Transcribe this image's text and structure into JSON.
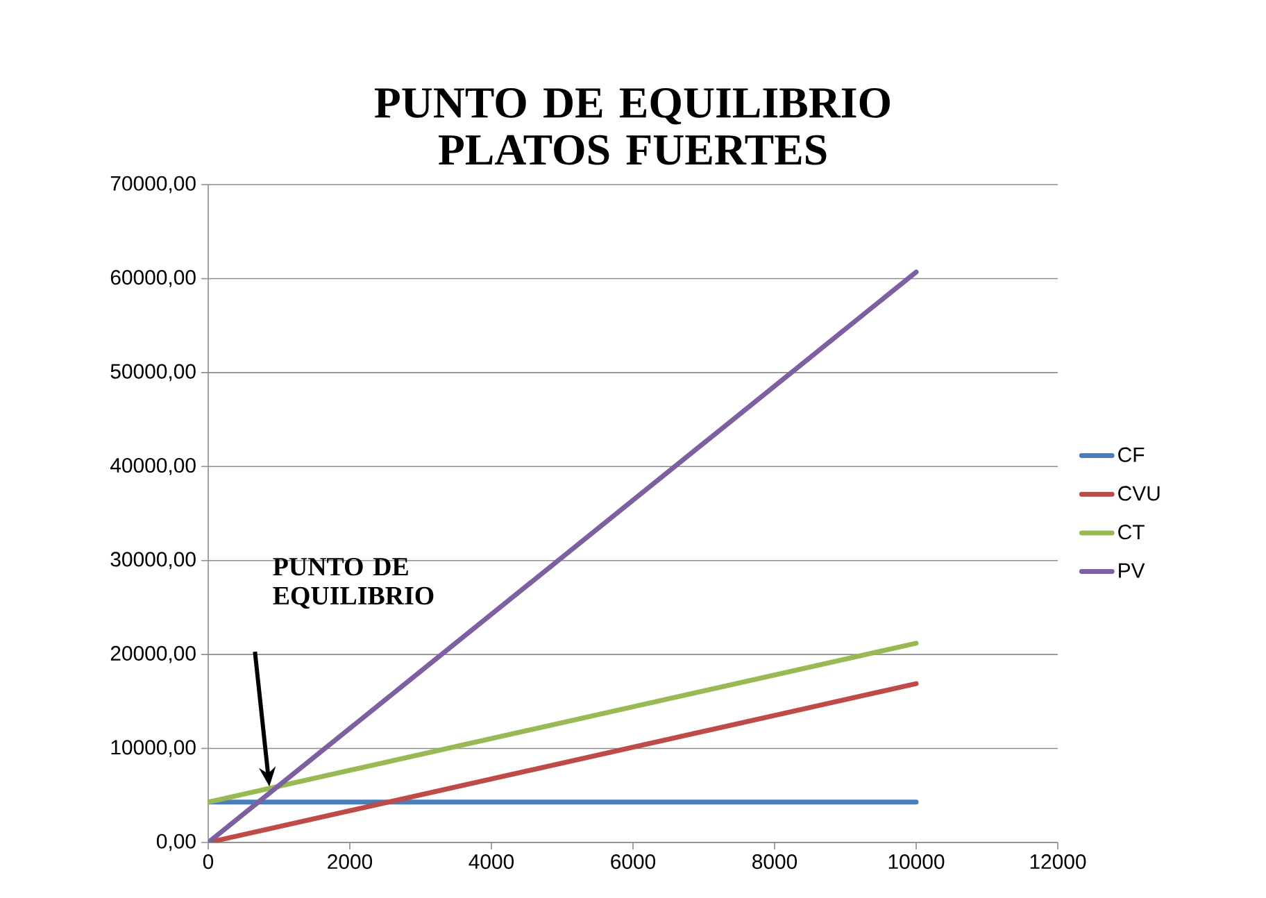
{
  "chart_data": {
    "type": "line",
    "title": "PUNTO DE EQUILIBRIO PLATOS FUERTES",
    "xlim": [
      0,
      12000
    ],
    "xticks": [
      0,
      2000,
      4000,
      6000,
      8000,
      10000,
      12000
    ],
    "ylim": [
      0,
      70000
    ],
    "yticks": [
      {
        "value": 0,
        "label": "0,00"
      },
      {
        "value": 10000,
        "label": "10000,00"
      },
      {
        "value": 20000,
        "label": "20000,00"
      },
      {
        "value": 30000,
        "label": "30000,00"
      },
      {
        "value": 40000,
        "label": "40000,00"
      },
      {
        "value": 50000,
        "label": "50000,00"
      },
      {
        "value": 60000,
        "label": "60000,00"
      },
      {
        "value": 70000,
        "label": "70000,00"
      }
    ],
    "x": [
      0,
      10000
    ],
    "grid": "y",
    "legend": "right",
    "marker": "none",
    "line_style": "solid",
    "series": [
      {
        "name": "CF",
        "color": "#4a7ebb",
        "values": [
          4300,
          4300
        ]
      },
      {
        "name": "CVU",
        "color": "#be4b48",
        "values": [
          0,
          16900
        ]
      },
      {
        "name": "CT",
        "color": "#98b954",
        "values": [
          4300,
          21200
        ]
      },
      {
        "name": "PV",
        "color": "#7d60a0",
        "values": [
          0,
          60700
        ]
      }
    ],
    "annotations": [
      "PUNTO DE EQUILIBRIO"
    ]
  }
}
